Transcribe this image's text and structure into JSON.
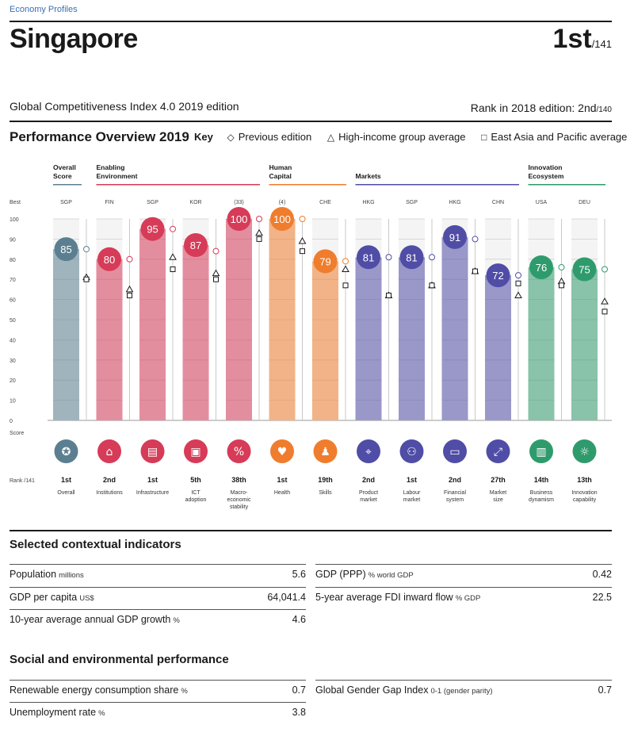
{
  "breadcrumb": "Economy Profiles",
  "country": "Singapore",
  "rank": {
    "value": "1st",
    "out_of": "/141"
  },
  "index_edition": "Global Competitiveness Index 4.0 2019 edition",
  "rank_2018": {
    "label": "Rank in 2018 edition: 2nd",
    "out_of": "/140"
  },
  "performance": {
    "title": "Performance Overview 2019",
    "key_label": "Key",
    "key_items": [
      {
        "glyph": "◇",
        "label": "Previous edition"
      },
      {
        "glyph": "△",
        "label": "High-income group average"
      },
      {
        "glyph": "□",
        "label": "East Asia and Pacific average"
      }
    ]
  },
  "chart_data": {
    "type": "bar",
    "ylim": [
      0,
      100
    ],
    "y_ticks": [
      0,
      10,
      20,
      30,
      40,
      50,
      60,
      70,
      80,
      90,
      100
    ],
    "best_label": "Best",
    "score_label": "Score",
    "rank_label": "Rank /141",
    "groups": [
      {
        "name": "Overall Score",
        "line1": "Overall",
        "line2": "Score",
        "color": "#5b7f91",
        "span": [
          0,
          0
        ]
      },
      {
        "name": "Enabling Environment",
        "line1": "Enabling",
        "line2": "Environment",
        "color": "#d63b58",
        "span": [
          1,
          4
        ]
      },
      {
        "name": "Human Capital",
        "line1": "Human",
        "line2": "Capital",
        "color": "#ef7d2d",
        "span": [
          5,
          6
        ]
      },
      {
        "name": "Markets",
        "line1": "",
        "line2": "Markets",
        "color": "#504da6",
        "span": [
          7,
          10
        ]
      },
      {
        "name": "Innovation Ecosystem",
        "line1": "Innovation",
        "line2": "Ecosystem",
        "color": "#2f9b6d",
        "span": [
          11,
          12
        ]
      }
    ],
    "pillars": [
      {
        "label": "Overall",
        "best": "SGP",
        "score": 85,
        "prev": 85,
        "high": 71,
        "eap": 70,
        "rank": "1st",
        "group": 0,
        "icon": "medal-icon",
        "glyph": "✪"
      },
      {
        "label": "Institutions",
        "best": "FIN",
        "score": 80,
        "prev": 80,
        "high": 65,
        "eap": 62,
        "rank": "2nd",
        "group": 1,
        "icon": "building-icon",
        "glyph": "⌂"
      },
      {
        "label": "Infrastructure",
        "best": "SGP",
        "score": 95,
        "prev": 95,
        "high": 81,
        "eap": 75,
        "rank": "1st",
        "group": 1,
        "icon": "train-icon",
        "glyph": "▤"
      },
      {
        "label": "ICT adoption",
        "best": "KOR",
        "score": 87,
        "prev": 84,
        "high": 73,
        "eap": 70,
        "rank": "5th",
        "group": 1,
        "icon": "chip-icon",
        "glyph": "▣"
      },
      {
        "label": "Macro-economic stability",
        "best": "(33)",
        "score": 100,
        "prev": 100,
        "high": 93,
        "eap": 90,
        "rank": "38th",
        "group": 1,
        "icon": "percent-icon",
        "glyph": "%"
      },
      {
        "label": "Health",
        "best": "(4)",
        "score": 100,
        "prev": 100,
        "high": 89,
        "eap": 84,
        "rank": "1st",
        "group": 2,
        "icon": "heart-pulse-icon",
        "glyph": "♥"
      },
      {
        "label": "Skills",
        "best": "CHE",
        "score": 79,
        "prev": 79,
        "high": 75,
        "eap": 67,
        "rank": "19th",
        "group": 2,
        "icon": "graduate-icon",
        "glyph": "♟"
      },
      {
        "label": "Product market",
        "best": "HKG",
        "score": 81,
        "prev": 81,
        "high": 62,
        "eap": 62,
        "rank": "2nd",
        "group": 3,
        "icon": "tag-icon",
        "glyph": "⌖"
      },
      {
        "label": "Labour market",
        "best": "SGP",
        "score": 81,
        "prev": 81,
        "high": 67,
        "eap": 67,
        "rank": "1st",
        "group": 3,
        "icon": "people-icon",
        "glyph": "⚇"
      },
      {
        "label": "Financial system",
        "best": "HKG",
        "score": 91,
        "prev": 90,
        "high": 74,
        "eap": 74,
        "rank": "2nd",
        "group": 3,
        "icon": "card-icon",
        "glyph": "▭"
      },
      {
        "label": "Market size",
        "best": "CHN",
        "score": 72,
        "prev": 72,
        "high": 62,
        "eap": 68,
        "rank": "27th",
        "group": 3,
        "icon": "expand-icon",
        "glyph": "⤢"
      },
      {
        "label": "Business dynamism",
        "best": "USA",
        "score": 76,
        "prev": 76,
        "high": 69,
        "eap": 67,
        "rank": "14th",
        "group": 4,
        "icon": "document-chart-icon",
        "glyph": "▥"
      },
      {
        "label": "Innovation capability",
        "best": "DEU",
        "score": 75,
        "prev": 75,
        "high": 59,
        "eap": 54,
        "rank": "13th",
        "group": 4,
        "icon": "lightbulb-icon",
        "glyph": "☼"
      }
    ]
  },
  "contextual": {
    "title": "Selected contextual indicators",
    "left": [
      {
        "label": "Population",
        "unit": "millions",
        "value": "5.6"
      },
      {
        "label": "GDP per capita",
        "unit": "US$",
        "value": "64,041.4"
      },
      {
        "label": "10-year average annual GDP growth",
        "unit": "%",
        "value": "4.6"
      }
    ],
    "right": [
      {
        "label": "GDP (PPP)",
        "unit": "% world GDP",
        "value": "0.42"
      },
      {
        "label": "5-year average FDI inward flow",
        "unit": "% GDP",
        "value": "22.5"
      }
    ]
  },
  "social": {
    "title": "Social and environmental performance",
    "left": [
      {
        "label": "Renewable energy consumption share",
        "unit": "%",
        "value": "0.7"
      },
      {
        "label": "Unemployment rate",
        "unit": "%",
        "value": "3.8"
      }
    ],
    "right": [
      {
        "label": "Global Gender Gap Index",
        "unit": "0-1 (gender parity)",
        "value": "0.7"
      }
    ]
  }
}
